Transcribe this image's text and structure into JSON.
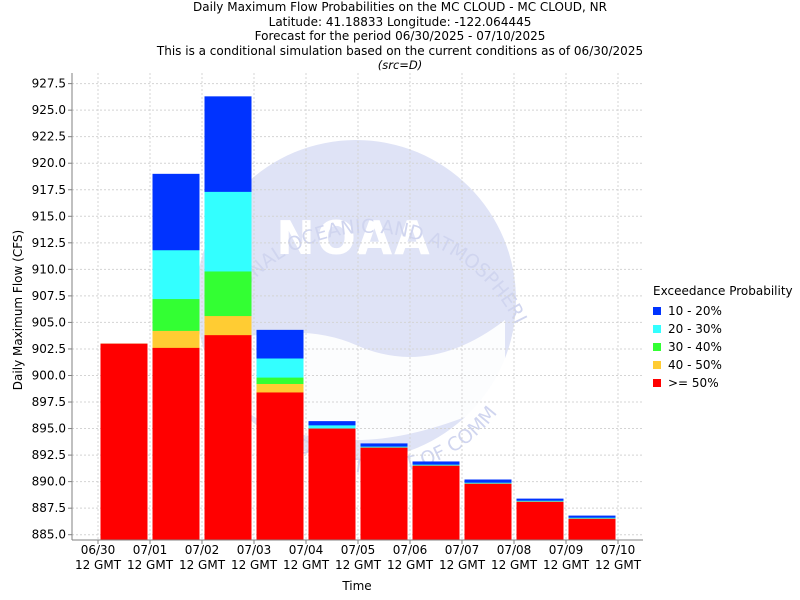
{
  "header": {
    "title": "Daily Maximum Flow Probabilities on the MC CLOUD - MC CLOUD, NR",
    "location": "Latitude: 41.18833 Longitude: -122.064445",
    "period": "Forecast for the period 06/30/2025 - 07/10/2025",
    "note": "This is a conditional simulation based on the current conditions as of 06/30/2025",
    "source": "(src=D)"
  },
  "watermark": {
    "logo_text": "NOAA",
    "arc_text_top": "NATIONAL OCEANIC AND ATMOSPHERIC ADMINISTRATION",
    "arc_text_bottom": "U.S. DEPARTMENT OF COMMERCE"
  },
  "legend": {
    "title": "Exceedance Probability",
    "items": [
      {
        "label": "10 - 20%",
        "color": "#0033ff"
      },
      {
        "label": "20 - 30%",
        "color": "#33ffff"
      },
      {
        "label": "30 - 40%",
        "color": "#33ff33"
      },
      {
        "label": "40 - 50%",
        "color": "#ffcc33"
      },
      {
        "label": ">= 50%",
        "color": "#ff0000"
      }
    ]
  },
  "chart_data": {
    "type": "bar",
    "stacked": true,
    "xlabel": "Time",
    "ylabel": "Daily Maximum Flow (CFS)",
    "ylim": [
      884.5,
      928.5
    ],
    "yticks": [
      885.0,
      887.5,
      890.0,
      892.5,
      895.0,
      897.5,
      900.0,
      902.5,
      905.0,
      907.5,
      910.0,
      912.5,
      915.0,
      917.5,
      920.0,
      922.5,
      925.0,
      927.5
    ],
    "grid": true,
    "x_tick_labels": [
      [
        "06/30",
        "12 GMT"
      ],
      [
        "07/01",
        "12 GMT"
      ],
      [
        "07/02",
        "12 GMT"
      ],
      [
        "07/03",
        "12 GMT"
      ],
      [
        "07/04",
        "12 GMT"
      ],
      [
        "07/05",
        "12 GMT"
      ],
      [
        "07/06",
        "12 GMT"
      ],
      [
        "07/07",
        "12 GMT"
      ],
      [
        "07/08",
        "12 GMT"
      ],
      [
        "07/09",
        "12 GMT"
      ],
      [
        "07/10",
        "12 GMT"
      ]
    ],
    "bars": [
      {
        "p50": 903.0,
        "p40": 903.0,
        "p30": 903.0,
        "p20": 903.0,
        "p10": 903.0
      },
      {
        "p50": 902.6,
        "p40": 904.2,
        "p30": 907.2,
        "p20": 911.8,
        "p10": 919.0
      },
      {
        "p50": 903.8,
        "p40": 905.6,
        "p30": 909.8,
        "p20": 917.3,
        "p10": 926.3
      },
      {
        "p50": 898.4,
        "p40": 899.2,
        "p30": 899.8,
        "p20": 901.6,
        "p10": 904.3
      },
      {
        "p50": 895.0,
        "p40": 895.0,
        "p30": 895.0,
        "p20": 895.3,
        "p10": 895.7
      },
      {
        "p50": 893.2,
        "p40": 893.2,
        "p30": 893.2,
        "p20": 893.3,
        "p10": 893.6
      },
      {
        "p50": 891.5,
        "p40": 891.5,
        "p30": 891.5,
        "p20": 891.6,
        "p10": 891.9
      },
      {
        "p50": 889.8,
        "p40": 889.8,
        "p30": 889.8,
        "p20": 889.9,
        "p10": 890.2
      },
      {
        "p50": 888.1,
        "p40": 888.1,
        "p30": 888.1,
        "p20": 888.2,
        "p10": 888.4
      },
      {
        "p50": 886.5,
        "p40": 886.5,
        "p30": 886.5,
        "p20": 886.6,
        "p10": 886.8
      }
    ]
  }
}
